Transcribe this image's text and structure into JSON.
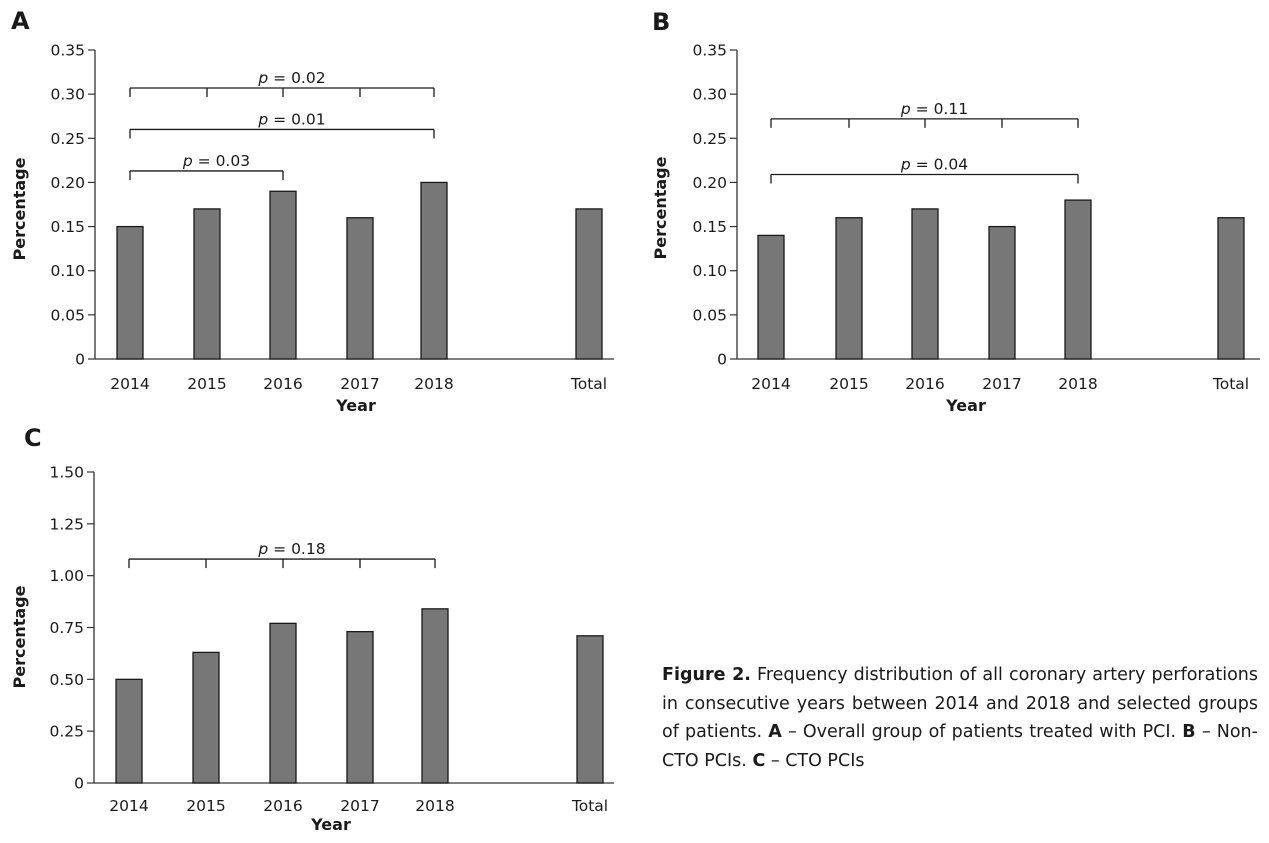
{
  "chart_data": [
    {
      "panel": "A",
      "type": "bar",
      "categories": [
        "2014",
        "2015",
        "2016",
        "2017",
        "2018",
        "Total"
      ],
      "values": [
        0.15,
        0.17,
        0.19,
        0.16,
        0.2,
        0.17
      ],
      "xlabel": "Year",
      "ylabel": "Percentage",
      "ylim": [
        0,
        0.35
      ],
      "yticks": [
        "0",
        "0.05",
        "0.10",
        "0.15",
        "0.20",
        "0.25",
        "0.30",
        "0.35"
      ],
      "grid": false,
      "bar_color": "#777777",
      "annotations": [
        {
          "text": "p = 0.02",
          "p_label": "p",
          "p_value": "= 0.02",
          "from": "2014",
          "to": "2018",
          "ticks": [
            "2014",
            "2015",
            "2016",
            "2017",
            "2018"
          ],
          "level": 0.307
        },
        {
          "text": "p = 0.01",
          "p_label": "p",
          "p_value": "= 0.01",
          "from": "2014",
          "to": "2018",
          "ticks": [
            "2014",
            "2018"
          ],
          "level": 0.26
        },
        {
          "text": "p = 0.03",
          "p_label": "p",
          "p_value": "= 0.03",
          "from": "2014",
          "to": "2016",
          "ticks": [
            "2014",
            "2016"
          ],
          "level": 0.213
        }
      ]
    },
    {
      "panel": "B",
      "type": "bar",
      "categories": [
        "2014",
        "2015",
        "2016",
        "2017",
        "2018",
        "Total"
      ],
      "values": [
        0.14,
        0.16,
        0.17,
        0.15,
        0.18,
        0.16
      ],
      "xlabel": "Year",
      "ylabel": "Percentage",
      "ylim": [
        0,
        0.35
      ],
      "yticks": [
        "0",
        "0.05",
        "0.10",
        "0.15",
        "0.20",
        "0.25",
        "0.30",
        "0.35"
      ],
      "grid": false,
      "bar_color": "#777777",
      "annotations": [
        {
          "text": "p = 0.11",
          "p_label": "p",
          "p_value": "= 0.11",
          "from": "2014",
          "to": "2018",
          "ticks": [
            "2014",
            "2015",
            "2016",
            "2017",
            "2018"
          ],
          "level": 0.272
        },
        {
          "text": "p = 0.04",
          "p_label": "p",
          "p_value": "= 0.04",
          "from": "2014",
          "to": "2018",
          "ticks": [
            "2014",
            "2018"
          ],
          "level": 0.209
        }
      ]
    },
    {
      "panel": "C",
      "type": "bar",
      "categories": [
        "2014",
        "2015",
        "2016",
        "2017",
        "2018",
        "Total"
      ],
      "values": [
        0.5,
        0.63,
        0.77,
        0.73,
        0.84,
        0.71
      ],
      "xlabel": "Year",
      "ylabel": "Percentage",
      "ylim": [
        0,
        1.5
      ],
      "yticks": [
        "0",
        "0.25",
        "0.50",
        "0.75",
        "1.00",
        "1.25",
        "1.50"
      ],
      "grid": false,
      "bar_color": "#777777",
      "annotations": [
        {
          "text": "p = 0.18",
          "p_label": "p",
          "p_value": "= 0.18",
          "from": "2014",
          "to": "2018",
          "ticks": [
            "2014",
            "2015",
            "2016",
            "2017",
            "2018"
          ],
          "level": 1.08
        }
      ]
    }
  ],
  "caption": {
    "label": "Figure 2.",
    "text": "Frequency distribution of all coronary artery perforations in consecutive years between 2014 and 2018 and selected groups of patients.",
    "a_label": "A",
    "a_text": "– Overall group of patients treated with PCI.",
    "b_label": "B",
    "b_text": "– Non-CTO PCIs.",
    "c_label": "C",
    "c_text": "– CTO PCIs"
  }
}
